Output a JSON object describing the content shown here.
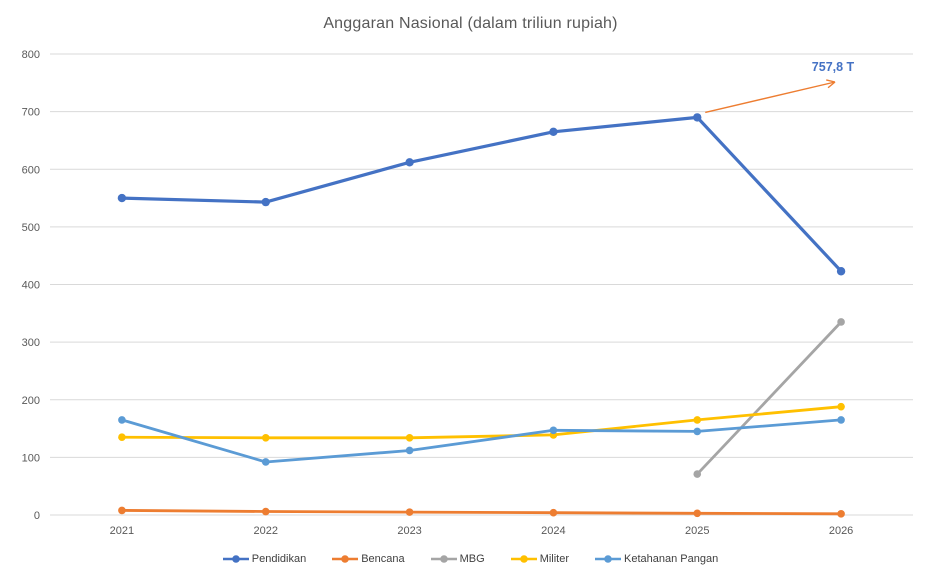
{
  "chart_data": {
    "type": "line",
    "title": "Anggaran Nasional (dalam triliun rupiah)",
    "title_color": "#595959",
    "categories": [
      "2021",
      "2022",
      "2023",
      "2024",
      "2025",
      "2026"
    ],
    "series": [
      {
        "name": "Pendidikan",
        "color": "#4472C4",
        "values": [
          550,
          543,
          612,
          665,
          690,
          423
        ]
      },
      {
        "name": "Bencana",
        "color": "#ED7D31",
        "values": [
          8,
          6,
          5,
          4,
          3,
          2
        ]
      },
      {
        "name": "MBG",
        "color": "#A5A5A5",
        "values": [
          null,
          null,
          null,
          null,
          71,
          335
        ]
      },
      {
        "name": "Militer",
        "color": "#FFC000",
        "values": [
          135,
          134,
          134,
          139,
          165,
          188
        ]
      },
      {
        "name": "Ketahanan Pangan",
        "color": "#5B9BD5",
        "values": [
          165,
          92,
          112,
          147,
          145,
          165
        ]
      }
    ],
    "ylim": [
      0,
      800
    ],
    "ytick_step": 100,
    "yticks": [
      0,
      100,
      200,
      300,
      400,
      500,
      600,
      700,
      800
    ],
    "grid": true,
    "gridline_color": "#D9D9D9",
    "axis_text_color": "#595959",
    "legend_position": "bottom",
    "annotation": {
      "text": "757,8 T",
      "text_color": "#4472C4",
      "arrow_color": "#ED7D31",
      "anchor_series": "Pendidikan",
      "anchor_category": "2025"
    }
  }
}
